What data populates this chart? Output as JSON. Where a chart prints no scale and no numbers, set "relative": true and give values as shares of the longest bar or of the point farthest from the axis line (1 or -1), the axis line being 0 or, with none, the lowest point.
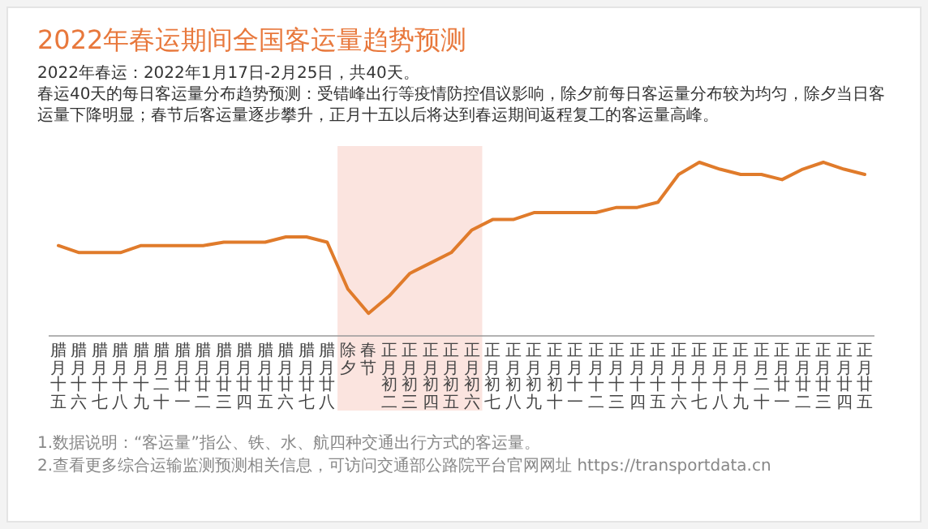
{
  "chart_data": {
    "type": "line",
    "title": "2022年春运期间全国客运量趋势预测",
    "subtitle": "2022年春运：2022年1月17日-2月25日，共40天。",
    "annotations": [
      "春运40天的每日客运量分布趋势预测：受错峰出行等疫情防控倡议影响，除夕前每日客运量分布较为均匀，除夕当日客运量下降明显；春节后客运量逐步攀升，正月十五以后将达到春运期间返程复工的客运量高峰。",
      "1.数据说明：“客运量”指公、铁、水、航四种交通出行方式的客运量。",
      "2.查看更多综合运输监测预测相关信息，可访问交通部公路院平台官网网址 https://transportdata.cn"
    ],
    "categories": [
      "腊月十五",
      "腊月十六",
      "腊月十七",
      "腊月十八",
      "腊月十九",
      "腊月二十",
      "腊月廿一",
      "腊月廿二",
      "腊月廿三",
      "腊月廿四",
      "腊月廿五",
      "腊月廿六",
      "腊月廿七",
      "腊月廿八",
      "除夕",
      "春节",
      "正月初二",
      "正月初三",
      "正月初四",
      "正月初五",
      "正月初六",
      "正月初七",
      "正月初八",
      "正月初九",
      "正月初十",
      "正月十一",
      "正月十二",
      "正月十三",
      "正月十四",
      "正月十五",
      "正月十六",
      "正月十七",
      "正月十八",
      "正月十九",
      "正月二十",
      "正月廿一",
      "正月廿二",
      "正月廿三",
      "正月廿四",
      "正月廿五"
    ],
    "relative": true,
    "series": [
      {
        "color": "#e07b2b",
        "values": [
          0.52,
          0.48,
          0.48,
          0.48,
          0.52,
          0.52,
          0.52,
          0.52,
          0.54,
          0.54,
          0.54,
          0.57,
          0.57,
          0.54,
          0.27,
          0.13,
          0.23,
          0.36,
          0.42,
          0.48,
          0.61,
          0.67,
          0.67,
          0.71,
          0.71,
          0.71,
          0.71,
          0.74,
          0.74,
          0.77,
          0.93,
          1,
          0.96,
          0.93,
          0.93,
          0.9,
          0.96,
          1,
          0.96,
          0.93
        ]
      }
    ],
    "bands": [
      {
        "axis": "x",
        "from": "除夕",
        "to": "正月初六",
        "color": "#fbe4df"
      }
    ],
    "marker": "none",
    "line_style": "solid"
  }
}
